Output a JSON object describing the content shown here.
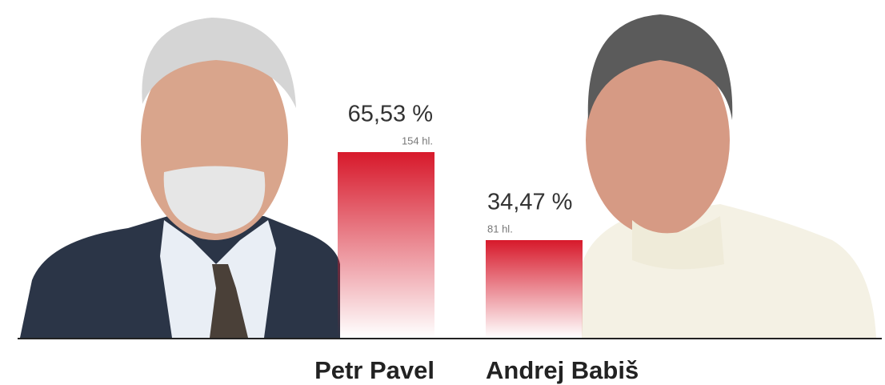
{
  "chart_data": {
    "type": "bar",
    "categories": [
      "Petr Pavel",
      "Andrej Babiš"
    ],
    "values": [
      65.53,
      34.47
    ],
    "value_labels": [
      "65,53 %",
      "34,47 %"
    ],
    "votes": [
      {
        "value": 154,
        "label": "154 hl."
      },
      {
        "value": 81,
        "label": "81 hl."
      }
    ],
    "color": "#d7192b"
  }
}
